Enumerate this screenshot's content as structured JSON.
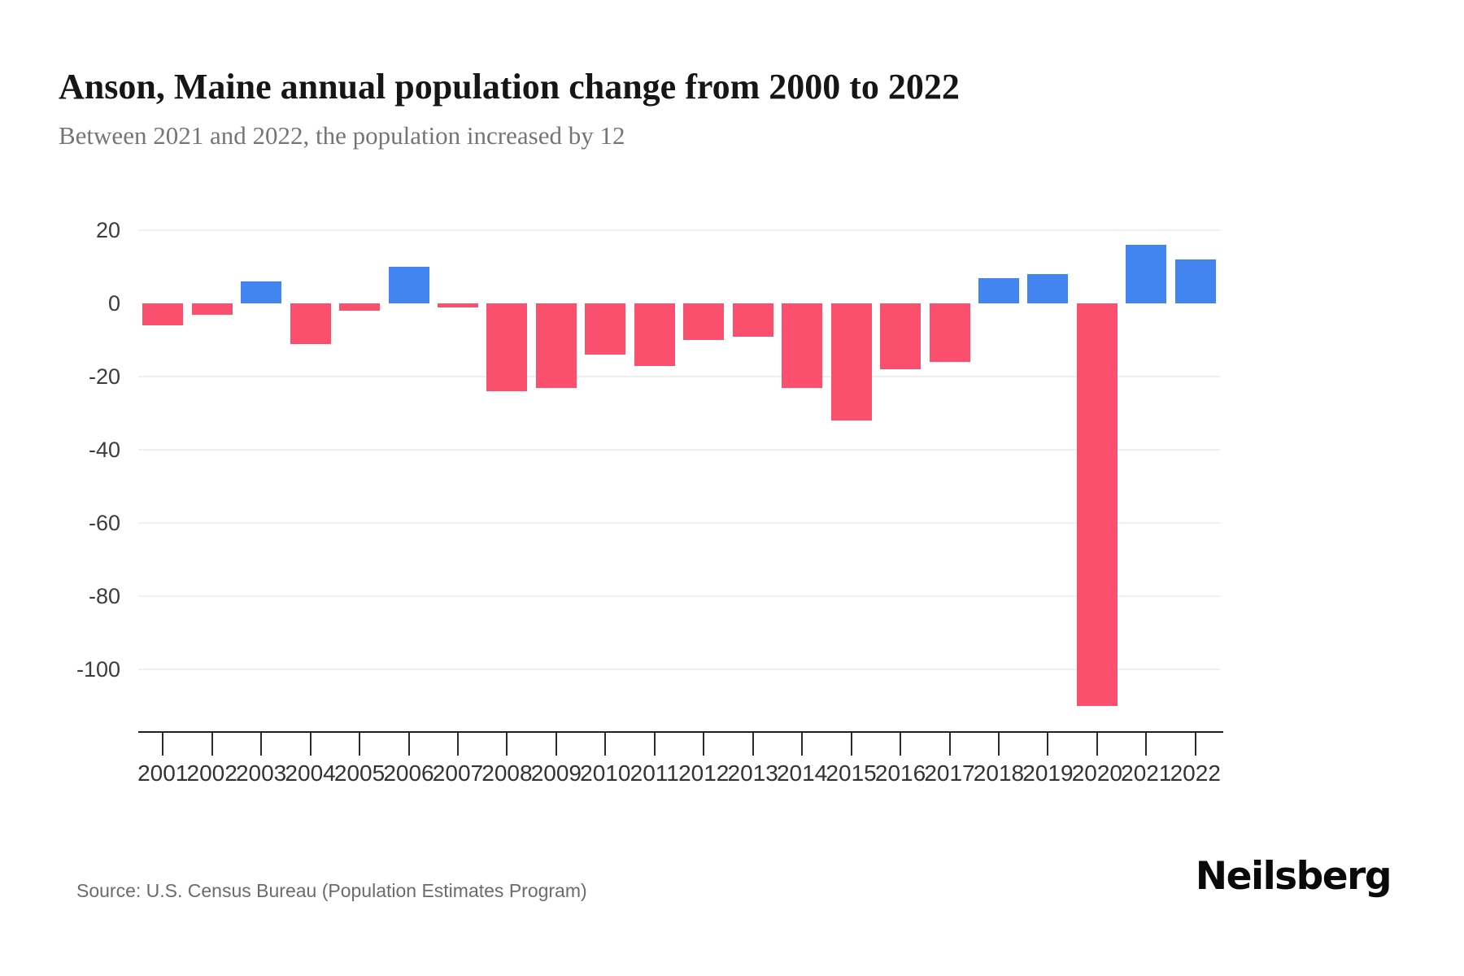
{
  "header": {
    "title": "Anson, Maine annual population change from 2000 to 2022",
    "subtitle": "Between 2021 and 2022, the population increased by 12"
  },
  "chart_data": {
    "type": "bar",
    "title": "Anson, Maine annual population change from 2000 to 2022",
    "subtitle": "Between 2021 and 2022, the population increased by 12",
    "categories": [
      "2001",
      "2002",
      "2003",
      "2004",
      "2005",
      "2006",
      "2007",
      "2008",
      "2009",
      "2010",
      "2011",
      "2012",
      "2013",
      "2014",
      "2015",
      "2016",
      "2017",
      "2018",
      "2019",
      "2020",
      "2021",
      "2022"
    ],
    "values": [
      -6,
      -3,
      6,
      -11,
      -2,
      10,
      -1,
      -24,
      -23,
      -14,
      -17,
      -10,
      -9,
      -23,
      -32,
      -18,
      -16,
      7,
      8,
      -110,
      16,
      12
    ],
    "xlabel": "",
    "ylabel": "",
    "yticks": [
      20,
      0,
      -20,
      -40,
      -60,
      -80,
      -100
    ],
    "ylim": [
      -117,
      20
    ],
    "grid": "horizontal",
    "legend": "none",
    "colors": {
      "positive": "#4285f0",
      "negative": "#fa4f6d",
      "gridline": "#efefef",
      "axis": "#1f1f1f"
    }
  },
  "footer": {
    "source": "Source: U.S. Census Bureau (Population Estimates Program)",
    "brand": "Neilsberg"
  }
}
